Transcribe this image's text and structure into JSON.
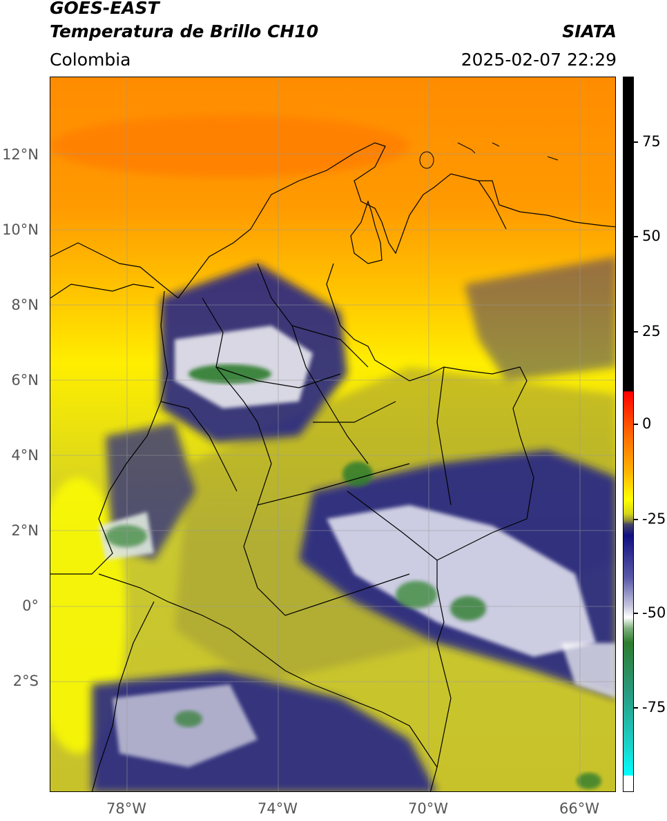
{
  "header": {
    "satellite": "GOES-EAST",
    "product": "Temperatura de Brillo CH10",
    "region": "Colombia",
    "organization": "SIATA",
    "datetime": "2025-02-07 22:29"
  },
  "map": {
    "lat_labels": [
      "12°N",
      "10°N",
      "8°N",
      "6°N",
      "4°N",
      "2°N",
      "0°",
      "2°S"
    ],
    "lon_labels": [
      "78°W",
      "74°W",
      "70°W",
      "66°W"
    ]
  },
  "colorbar": {
    "labels": [
      "75",
      "50",
      "25",
      "0",
      "-25",
      "-50",
      "-75"
    ],
    "colors": {
      "black": "#000000",
      "red": "#e8160c",
      "orange": "#ff8c00",
      "yellow": "#ffff00",
      "olive": "#a8a830",
      "navy": "#1c1c8c",
      "white": "#ffffff",
      "green": "#2e7d2e",
      "teal": "#2ab7a0",
      "cyan": "#00e5e5"
    }
  }
}
